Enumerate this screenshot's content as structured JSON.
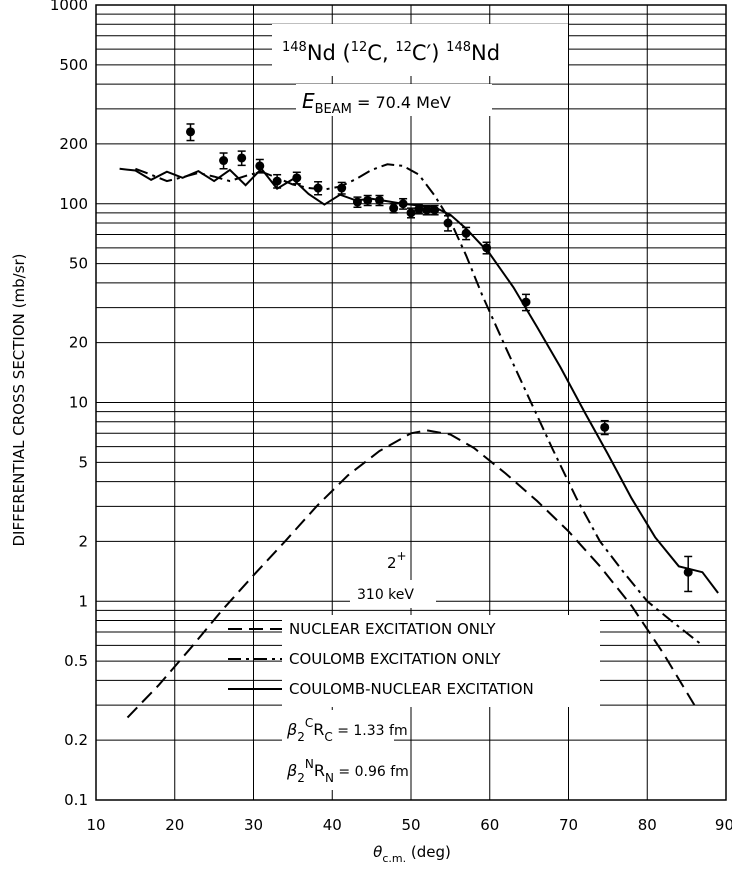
{
  "chart_data": {
    "type": "scatter",
    "title": {
      "reaction_a": "148",
      "reaction_b": "Nd (",
      "reaction_c": "12",
      "reaction_d": "C, ",
      "reaction_e": "12",
      "reaction_f": "C′) ",
      "reaction_g": "148",
      "reaction_h": "Nd"
    },
    "beam": {
      "E": "E",
      "sub": "BEAM",
      "value": " = 70.4 MeV"
    },
    "xlabel": {
      "main": "θ",
      "sub": "c.m.",
      "unit": " (deg)"
    },
    "ylabel": "DIFFERENTIAL CROSS SECTION (mb/sr)",
    "xlim": [
      10,
      90
    ],
    "ylim": [
      0.1,
      1000
    ],
    "yscale": "log",
    "grid": true,
    "x_ticks": [
      "10",
      "20",
      "30",
      "40",
      "50",
      "60",
      "70",
      "80",
      "90"
    ],
    "y_ticks": [
      {
        "v": 0.1,
        "label": "0.1"
      },
      {
        "v": 0.2,
        "label": "0.2"
      },
      {
        "v": 0.5,
        "label": "0.5"
      },
      {
        "v": 1,
        "label": "1"
      },
      {
        "v": 2,
        "label": "2"
      },
      {
        "v": 5,
        "label": "5"
      },
      {
        "v": 10,
        "label": "10"
      },
      {
        "v": 20,
        "label": "20"
      },
      {
        "v": 50,
        "label": "50"
      },
      {
        "v": 100,
        "label": "100"
      },
      {
        "v": 200,
        "label": "200"
      },
      {
        "v": 500,
        "label": "500"
      },
      {
        "v": 1000,
        "label": "1000"
      }
    ],
    "state": {
      "spin": "2",
      "parity": "+",
      "energy": "310 keV"
    },
    "legend": {
      "position": "bottom-center",
      "entries": [
        {
          "label": "NUCLEAR EXCITATION ONLY",
          "style": "dashed"
        },
        {
          "label": "COULOMB EXCITATION ONLY",
          "style": "dash-dot"
        },
        {
          "label": "COULOMB-NUCLEAR EXCITATION",
          "style": "solid"
        }
      ]
    },
    "parameters": [
      {
        "sym": "β",
        "sub": "2",
        "sup": "C",
        "r": "R",
        "rsub": "C",
        "value": " = 1.33 fm"
      },
      {
        "sym": "β",
        "sub": "2",
        "sup": "N",
        "r": "R",
        "rsub": "N",
        "value": " = 0.96 fm"
      }
    ],
    "data_points": [
      {
        "x": 22.0,
        "y": 230,
        "err": 22
      },
      {
        "x": 26.2,
        "y": 165,
        "err": 15
      },
      {
        "x": 28.5,
        "y": 170,
        "err": 14
      },
      {
        "x": 30.8,
        "y": 155,
        "err": 12
      },
      {
        "x": 33.0,
        "y": 130,
        "err": 10
      },
      {
        "x": 35.5,
        "y": 135,
        "err": 9
      },
      {
        "x": 38.2,
        "y": 120,
        "err": 9
      },
      {
        "x": 41.2,
        "y": 120,
        "err": 8
      },
      {
        "x": 43.2,
        "y": 102,
        "err": 6
      },
      {
        "x": 44.5,
        "y": 104,
        "err": 6
      },
      {
        "x": 46.0,
        "y": 104,
        "err": 6
      },
      {
        "x": 47.8,
        "y": 95,
        "err": 5
      },
      {
        "x": 49.0,
        "y": 100,
        "err": 6
      },
      {
        "x": 50.0,
        "y": 90,
        "err": 5
      },
      {
        "x": 51.0,
        "y": 94,
        "err": 5
      },
      {
        "x": 52.0,
        "y": 93,
        "err": 5
      },
      {
        "x": 53.0,
        "y": 93,
        "err": 5
      },
      {
        "x": 54.7,
        "y": 80,
        "err": 7
      },
      {
        "x": 57.0,
        "y": 71,
        "err": 5
      },
      {
        "x": 59.6,
        "y": 60,
        "err": 4
      },
      {
        "x": 64.6,
        "y": 32,
        "err": 3
      },
      {
        "x": 74.6,
        "y": 7.5,
        "err": 0.6
      },
      {
        "x": 85.2,
        "y": 1.4,
        "err": 0.28
      }
    ],
    "series": [
      {
        "style": "dashed",
        "x": [
          14,
          18,
          22,
          26,
          30,
          34,
          38,
          42,
          46,
          50,
          52,
          55,
          58,
          62,
          66,
          70,
          74,
          78,
          82,
          86
        ],
        "values": [
          0.26,
          0.38,
          0.58,
          0.9,
          1.35,
          2.0,
          3.0,
          4.3,
          5.7,
          7.0,
          7.25,
          6.9,
          5.9,
          4.4,
          3.2,
          2.25,
          1.5,
          0.95,
          0.55,
          0.3
        ]
      },
      {
        "style": "dash-dot",
        "x": [
          15,
          17,
          19,
          21,
          23,
          25,
          27,
          29,
          31,
          33,
          35,
          37,
          39,
          41,
          43,
          45,
          47,
          49,
          51,
          53,
          55,
          57,
          59,
          62,
          65,
          68,
          71,
          74,
          77,
          80,
          83,
          87
        ],
        "values": [
          150,
          140,
          130,
          136,
          143,
          137,
          130,
          138,
          145,
          135,
          125,
          120,
          118,
          122,
          133,
          148,
          158,
          155,
          140,
          110,
          82,
          55,
          35,
          19,
          10.5,
          5.8,
          3.3,
          2.0,
          1.4,
          1.0,
          0.8,
          0.6
        ]
      },
      {
        "style": "solid",
        "x": [
          13,
          15,
          17,
          19,
          21,
          23,
          25,
          27,
          29,
          31,
          33,
          35,
          37,
          39,
          41,
          43,
          45,
          47,
          49,
          51,
          53,
          55,
          57,
          60,
          63,
          66,
          69,
          72,
          75,
          78,
          81,
          84,
          87,
          89
        ],
        "values": [
          150,
          147,
          132,
          145,
          135,
          146,
          130,
          148,
          124,
          150,
          119,
          133,
          112,
          99,
          111,
          104,
          106,
          103,
          100,
          98,
          96,
          88,
          75,
          56,
          38,
          24,
          15,
          9.0,
          5.5,
          3.3,
          2.1,
          1.5,
          1.4,
          1.1
        ]
      }
    ]
  }
}
